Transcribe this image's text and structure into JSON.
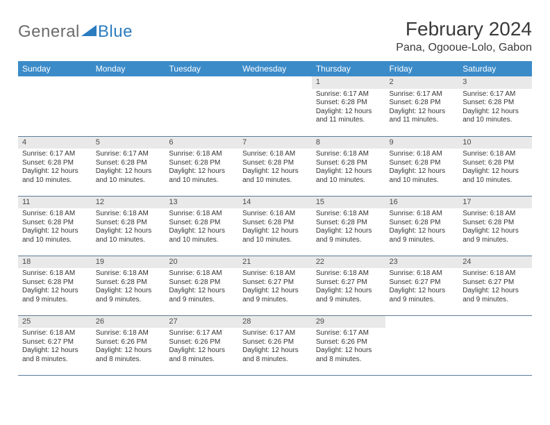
{
  "logo": {
    "general": "General",
    "blue": "Blue"
  },
  "title": "February 2024",
  "location": "Pana, Ogooue-Lolo, Gabon",
  "colors": {
    "header_bg": "#3b8bc9",
    "header_fg": "#ffffff",
    "daynum_bg": "#e9e9e9",
    "row_border": "#5a7a99",
    "logo_gray": "#6b6b6b",
    "logo_blue": "#2b7bbf"
  },
  "weekdays": [
    "Sunday",
    "Monday",
    "Tuesday",
    "Wednesday",
    "Thursday",
    "Friday",
    "Saturday"
  ],
  "weeks": [
    [
      null,
      null,
      null,
      null,
      {
        "n": "1",
        "sr": "Sunrise: 6:17 AM",
        "ss": "Sunset: 6:28 PM",
        "d1": "Daylight: 12 hours",
        "d2": "and 11 minutes."
      },
      {
        "n": "2",
        "sr": "Sunrise: 6:17 AM",
        "ss": "Sunset: 6:28 PM",
        "d1": "Daylight: 12 hours",
        "d2": "and 11 minutes."
      },
      {
        "n": "3",
        "sr": "Sunrise: 6:17 AM",
        "ss": "Sunset: 6:28 PM",
        "d1": "Daylight: 12 hours",
        "d2": "and 10 minutes."
      }
    ],
    [
      {
        "n": "4",
        "sr": "Sunrise: 6:17 AM",
        "ss": "Sunset: 6:28 PM",
        "d1": "Daylight: 12 hours",
        "d2": "and 10 minutes."
      },
      {
        "n": "5",
        "sr": "Sunrise: 6:17 AM",
        "ss": "Sunset: 6:28 PM",
        "d1": "Daylight: 12 hours",
        "d2": "and 10 minutes."
      },
      {
        "n": "6",
        "sr": "Sunrise: 6:18 AM",
        "ss": "Sunset: 6:28 PM",
        "d1": "Daylight: 12 hours",
        "d2": "and 10 minutes."
      },
      {
        "n": "7",
        "sr": "Sunrise: 6:18 AM",
        "ss": "Sunset: 6:28 PM",
        "d1": "Daylight: 12 hours",
        "d2": "and 10 minutes."
      },
      {
        "n": "8",
        "sr": "Sunrise: 6:18 AM",
        "ss": "Sunset: 6:28 PM",
        "d1": "Daylight: 12 hours",
        "d2": "and 10 minutes."
      },
      {
        "n": "9",
        "sr": "Sunrise: 6:18 AM",
        "ss": "Sunset: 6:28 PM",
        "d1": "Daylight: 12 hours",
        "d2": "and 10 minutes."
      },
      {
        "n": "10",
        "sr": "Sunrise: 6:18 AM",
        "ss": "Sunset: 6:28 PM",
        "d1": "Daylight: 12 hours",
        "d2": "and 10 minutes."
      }
    ],
    [
      {
        "n": "11",
        "sr": "Sunrise: 6:18 AM",
        "ss": "Sunset: 6:28 PM",
        "d1": "Daylight: 12 hours",
        "d2": "and 10 minutes."
      },
      {
        "n": "12",
        "sr": "Sunrise: 6:18 AM",
        "ss": "Sunset: 6:28 PM",
        "d1": "Daylight: 12 hours",
        "d2": "and 10 minutes."
      },
      {
        "n": "13",
        "sr": "Sunrise: 6:18 AM",
        "ss": "Sunset: 6:28 PM",
        "d1": "Daylight: 12 hours",
        "d2": "and 10 minutes."
      },
      {
        "n": "14",
        "sr": "Sunrise: 6:18 AM",
        "ss": "Sunset: 6:28 PM",
        "d1": "Daylight: 12 hours",
        "d2": "and 10 minutes."
      },
      {
        "n": "15",
        "sr": "Sunrise: 6:18 AM",
        "ss": "Sunset: 6:28 PM",
        "d1": "Daylight: 12 hours",
        "d2": "and 9 minutes."
      },
      {
        "n": "16",
        "sr": "Sunrise: 6:18 AM",
        "ss": "Sunset: 6:28 PM",
        "d1": "Daylight: 12 hours",
        "d2": "and 9 minutes."
      },
      {
        "n": "17",
        "sr": "Sunrise: 6:18 AM",
        "ss": "Sunset: 6:28 PM",
        "d1": "Daylight: 12 hours",
        "d2": "and 9 minutes."
      }
    ],
    [
      {
        "n": "18",
        "sr": "Sunrise: 6:18 AM",
        "ss": "Sunset: 6:28 PM",
        "d1": "Daylight: 12 hours",
        "d2": "and 9 minutes."
      },
      {
        "n": "19",
        "sr": "Sunrise: 6:18 AM",
        "ss": "Sunset: 6:28 PM",
        "d1": "Daylight: 12 hours",
        "d2": "and 9 minutes."
      },
      {
        "n": "20",
        "sr": "Sunrise: 6:18 AM",
        "ss": "Sunset: 6:28 PM",
        "d1": "Daylight: 12 hours",
        "d2": "and 9 minutes."
      },
      {
        "n": "21",
        "sr": "Sunrise: 6:18 AM",
        "ss": "Sunset: 6:27 PM",
        "d1": "Daylight: 12 hours",
        "d2": "and 9 minutes."
      },
      {
        "n": "22",
        "sr": "Sunrise: 6:18 AM",
        "ss": "Sunset: 6:27 PM",
        "d1": "Daylight: 12 hours",
        "d2": "and 9 minutes."
      },
      {
        "n": "23",
        "sr": "Sunrise: 6:18 AM",
        "ss": "Sunset: 6:27 PM",
        "d1": "Daylight: 12 hours",
        "d2": "and 9 minutes."
      },
      {
        "n": "24",
        "sr": "Sunrise: 6:18 AM",
        "ss": "Sunset: 6:27 PM",
        "d1": "Daylight: 12 hours",
        "d2": "and 9 minutes."
      }
    ],
    [
      {
        "n": "25",
        "sr": "Sunrise: 6:18 AM",
        "ss": "Sunset: 6:27 PM",
        "d1": "Daylight: 12 hours",
        "d2": "and 8 minutes."
      },
      {
        "n": "26",
        "sr": "Sunrise: 6:18 AM",
        "ss": "Sunset: 6:26 PM",
        "d1": "Daylight: 12 hours",
        "d2": "and 8 minutes."
      },
      {
        "n": "27",
        "sr": "Sunrise: 6:17 AM",
        "ss": "Sunset: 6:26 PM",
        "d1": "Daylight: 12 hours",
        "d2": "and 8 minutes."
      },
      {
        "n": "28",
        "sr": "Sunrise: 6:17 AM",
        "ss": "Sunset: 6:26 PM",
        "d1": "Daylight: 12 hours",
        "d2": "and 8 minutes."
      },
      {
        "n": "29",
        "sr": "Sunrise: 6:17 AM",
        "ss": "Sunset: 6:26 PM",
        "d1": "Daylight: 12 hours",
        "d2": "and 8 minutes."
      },
      null,
      null
    ]
  ]
}
